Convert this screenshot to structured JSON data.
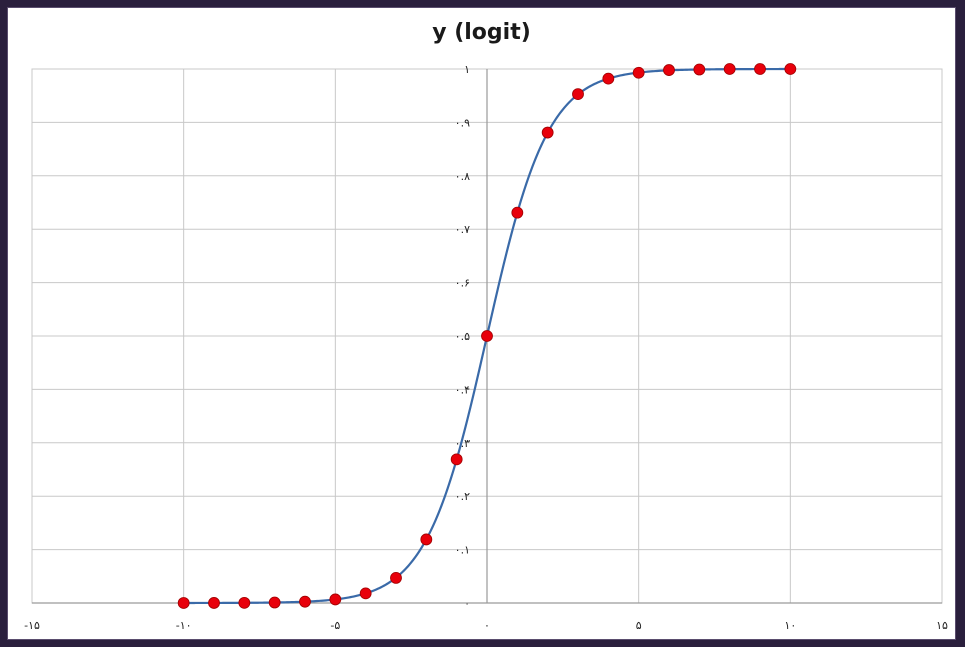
{
  "colors": {
    "frame_background": "#2a1f3d",
    "gridline": "#c8c8c8",
    "curve": "#3a6aa8",
    "marker": "#e8000b",
    "marker_stroke": "#a00000"
  },
  "chart_data": {
    "type": "scatter",
    "title": "y (logit)",
    "xlabel": "",
    "ylabel": "",
    "xlim": [
      -15,
      15
    ],
    "ylim": [
      0,
      1
    ],
    "grid": true,
    "x_ticks": [
      -15,
      -10,
      -5,
      0,
      5,
      10,
      15
    ],
    "x_tick_labels": [
      "-۱۵",
      "-۱۰",
      "-۵",
      "۰",
      "۵",
      "۱۰",
      "۱۵"
    ],
    "y_ticks": [
      0,
      0.1,
      0.2,
      0.3,
      0.4,
      0.5,
      0.6,
      0.7,
      0.8,
      0.9,
      1
    ],
    "y_tick_labels": [
      "۰",
      "۰.۱",
      "۰.۲",
      "۰.۳",
      "۰.۴",
      "۰.۵",
      "۰.۶",
      "۰.۷",
      "۰.۸",
      "۰.۹",
      "۱"
    ],
    "series": [
      {
        "x": [
          -10,
          -9,
          -8,
          -7,
          -6,
          -5,
          -4,
          -3,
          -2,
          -1,
          0,
          1,
          2,
          3,
          4,
          5,
          6,
          7,
          8,
          9,
          10
        ],
        "y": [
          5e-05,
          0.0001,
          0.0003,
          0.0009,
          0.0025,
          0.0067,
          0.018,
          0.047,
          0.119,
          0.269,
          0.5,
          0.731,
          0.881,
          0.953,
          0.982,
          0.993,
          0.998,
          0.999,
          1.0,
          1.0,
          1.0
        ]
      }
    ]
  }
}
